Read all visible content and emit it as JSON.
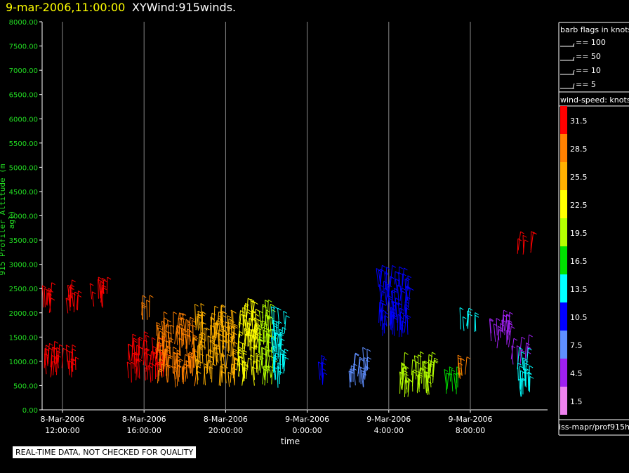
{
  "header": {
    "time": "9-mar-2006,11:00:00",
    "name": "XYWind:915winds."
  },
  "footer": {
    "warning": "REAL-TIME DATA, NOT CHECKED FOR QUALITY",
    "source": "iss-mapr/prof915h"
  },
  "legend": {
    "barb_title": "barb flags in knots",
    "barb_items": [
      "== 100",
      "== 50",
      "== 10",
      "== 5"
    ],
    "speed_title": "wind-speed: knots",
    "speed_bins": [
      {
        "label": "31.5",
        "color": "#ff0000"
      },
      {
        "label": "28.5",
        "color": "#ff8000"
      },
      {
        "label": "25.5",
        "color": "#ffb000"
      },
      {
        "label": "22.5",
        "color": "#ffff00"
      },
      {
        "label": "19.5",
        "color": "#b4ff00"
      },
      {
        "label": "16.5",
        "color": "#00e000"
      },
      {
        "label": "13.5",
        "color": "#00ffff"
      },
      {
        "label": "10.5",
        "color": "#0000ff"
      },
      {
        "label": "7.5",
        "color": "#5f8fff"
      },
      {
        "label": "4.5",
        "color": "#a020f0"
      },
      {
        "label": "1.5",
        "color": "#ee82ee"
      }
    ]
  },
  "chart_data": {
    "type": "scatter",
    "title": "XYWind:915winds.",
    "xlabel": "time",
    "ylabel": "915 Profiler Altitude (m agl)",
    "ylim": [
      0,
      8000
    ],
    "y_ticks": [
      "0.00",
      "500.00",
      "1000.00",
      "1500.00",
      "2000.00",
      "2500.00",
      "3000.00",
      "3500.00",
      "4000.00",
      "4500.00",
      "5000.00",
      "5500.00",
      "6000.00",
      "6500.00",
      "7000.00",
      "7500.00",
      "8000.00"
    ],
    "x_ticks": [
      {
        "date": "8-Mar-2006",
        "time": "12:00:00",
        "hours": 0
      },
      {
        "date": "8-Mar-2006",
        "time": "16:00:00",
        "hours": 4
      },
      {
        "date": "8-Mar-2006",
        "time": "20:00:00",
        "hours": 8
      },
      {
        "date": "9-Mar-2006",
        "time": "0:00:00",
        "hours": 12
      },
      {
        "date": "9-Mar-2006",
        "time": "4:00:00",
        "hours": 16
      },
      {
        "date": "9-Mar-2006",
        "time": "8:00:00",
        "hours": 20
      }
    ],
    "grid": "vertical",
    "barb_groups": [
      {
        "t0": -1.0,
        "t1": 0.0,
        "ymin": 650,
        "ymax": 1050,
        "speed": 31.5
      },
      {
        "t0": 0.2,
        "t1": 0.7,
        "ymin": 650,
        "ymax": 1100,
        "speed": 31.5
      },
      {
        "t0": -1.0,
        "t1": -0.4,
        "ymin": 1950,
        "ymax": 2300,
        "speed": 31.5
      },
      {
        "t0": 0.2,
        "t1": 0.9,
        "ymin": 1950,
        "ymax": 2300,
        "speed": 31.5
      },
      {
        "t0": 1.4,
        "t1": 2.2,
        "ymin": 2100,
        "ymax": 2400,
        "speed": 31.5
      },
      {
        "t0": 3.2,
        "t1": 5.0,
        "ymin": 550,
        "ymax": 1200,
        "speed": 31.5
      },
      {
        "t0": 3.8,
        "t1": 4.3,
        "ymin": 1750,
        "ymax": 1950,
        "speed": 28.5
      },
      {
        "t0": 4.6,
        "t1": 6.5,
        "ymin": 450,
        "ymax": 1600,
        "speed": 28.5
      },
      {
        "t0": 6.5,
        "t1": 8.5,
        "ymin": 450,
        "ymax": 1800,
        "speed": 25.5
      },
      {
        "t0": 8.5,
        "t1": 9.6,
        "ymin": 450,
        "ymax": 1900,
        "speed": 22.5
      },
      {
        "t0": 9.6,
        "t1": 10.3,
        "ymin": 450,
        "ymax": 1900,
        "speed": 19.5
      },
      {
        "t0": 10.3,
        "t1": 10.9,
        "ymin": 450,
        "ymax": 1900,
        "speed": 13.5
      },
      {
        "t0": 12.5,
        "t1": 12.8,
        "ymin": 500,
        "ymax": 900,
        "speed": 10.5
      },
      {
        "t0": 14.0,
        "t1": 15.0,
        "ymin": 400,
        "ymax": 850,
        "speed": 7.5
      },
      {
        "t0": 15.5,
        "t1": 17.0,
        "ymin": 1500,
        "ymax": 2600,
        "speed": 10.5
      },
      {
        "t0": 16.5,
        "t1": 18.2,
        "ymin": 250,
        "ymax": 850,
        "speed": 19.5
      },
      {
        "t0": 18.8,
        "t1": 19.4,
        "ymin": 300,
        "ymax": 650,
        "speed": 16.5
      },
      {
        "t0": 19.4,
        "t1": 19.8,
        "ymin": 600,
        "ymax": 750,
        "speed": 28.5
      },
      {
        "t0": 19.5,
        "t1": 20.3,
        "ymin": 1600,
        "ymax": 1800,
        "speed": 13.5
      },
      {
        "t0": 21.0,
        "t1": 22.0,
        "ymin": 1250,
        "ymax": 1700,
        "speed": 4.5
      },
      {
        "t0": 22.0,
        "t1": 22.8,
        "ymin": 900,
        "ymax": 1150,
        "speed": 4.5
      },
      {
        "t0": 22.3,
        "t1": 23.0,
        "ymin": 250,
        "ymax": 900,
        "speed": 13.5
      },
      {
        "t0": 22.3,
        "t1": 23.0,
        "ymin": 3100,
        "ymax": 3300,
        "speed": 31.5
      }
    ]
  }
}
